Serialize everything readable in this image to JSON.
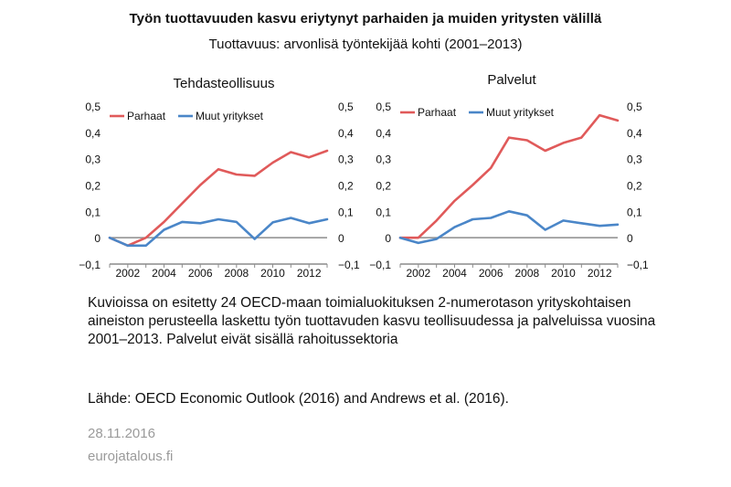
{
  "title": "Työn tuottavuuden kasvu eriytynyt parhaiden ja muiden yritysten välillä",
  "subtitle": "Tuottavuus: arvonlisä työntekijää kohti (2001–2013)",
  "note": "Kuvioissa on esitetty 24 OECD-maan toimialuokituksen 2-numerotason yrityskohtaisen aineiston perusteella laskettu työn tuottavuden kasvu teollisuudessa ja palveluissa vuosina 2001–2013. Palvelut eivät sisällä rahoitussektoria",
  "source": "Lähde: OECD Economic Outlook (2016) and Andrews et al. (2016).",
  "date": "28.11.2016",
  "site": "eurojatalous.fi",
  "colors": {
    "parhaat": "#e05a5a",
    "muut": "#4a86c8",
    "axis": "#8c8c8c"
  },
  "chart_data": [
    {
      "type": "line",
      "title": "Tehdasteollisuus",
      "x": [
        2001,
        2002,
        2003,
        2004,
        2005,
        2006,
        2007,
        2008,
        2009,
        2010,
        2011,
        2012,
        2013
      ],
      "xticks": [
        2002,
        2004,
        2006,
        2008,
        2010,
        2012
      ],
      "xticklabels": [
        "2002",
        "2004",
        "2006",
        "2008",
        "2010",
        "2012"
      ],
      "ylim": [
        -0.1,
        0.5
      ],
      "yticks": [
        -0.1,
        0,
        0.1,
        0.2,
        0.3,
        0.4,
        0.5
      ],
      "yticklabels": [
        "−0,1",
        "0",
        "0,1",
        "0,2",
        "0,3",
        "0,4",
        "0,5"
      ],
      "legend": "top-left",
      "series": [
        {
          "name": "Parhaat",
          "color": "#e05a5a",
          "values": [
            0.0,
            -0.03,
            0.0,
            0.06,
            0.13,
            0.2,
            0.26,
            0.24,
            0.235,
            0.285,
            0.325,
            0.305,
            0.33
          ]
        },
        {
          "name": "Muut yritykset",
          "color": "#4a86c8",
          "values": [
            0.0,
            -0.03,
            -0.03,
            0.03,
            0.06,
            0.055,
            0.07,
            0.06,
            -0.005,
            0.058,
            0.075,
            0.055,
            0.07
          ]
        }
      ]
    },
    {
      "type": "line",
      "title": "Palvelut",
      "x": [
        2001,
        2002,
        2003,
        2004,
        2005,
        2006,
        2007,
        2008,
        2009,
        2010,
        2011,
        2012,
        2013
      ],
      "xticks": [
        2002,
        2004,
        2006,
        2008,
        2010,
        2012
      ],
      "xticklabels": [
        "2002",
        "2004",
        "2006",
        "2008",
        "2010",
        "2012"
      ],
      "ylim": [
        -0.1,
        0.5
      ],
      "yticks": [
        -0.1,
        0,
        0.1,
        0.2,
        0.3,
        0.4,
        0.5
      ],
      "yticklabels": [
        "−0,1",
        "0",
        "0,1",
        "0,2",
        "0,3",
        "0,4",
        "0,5"
      ],
      "legend": "top-left",
      "series": [
        {
          "name": "Parhaat",
          "color": "#e05a5a",
          "values": [
            0.0,
            0.0,
            0.065,
            0.14,
            0.2,
            0.265,
            0.38,
            0.37,
            0.33,
            0.36,
            0.38,
            0.465,
            0.445
          ]
        },
        {
          "name": "Muut yritykset",
          "color": "#4a86c8",
          "values": [
            0.0,
            -0.02,
            -0.005,
            0.04,
            0.07,
            0.075,
            0.1,
            0.085,
            0.03,
            0.065,
            0.055,
            0.045,
            0.05
          ]
        }
      ]
    }
  ]
}
